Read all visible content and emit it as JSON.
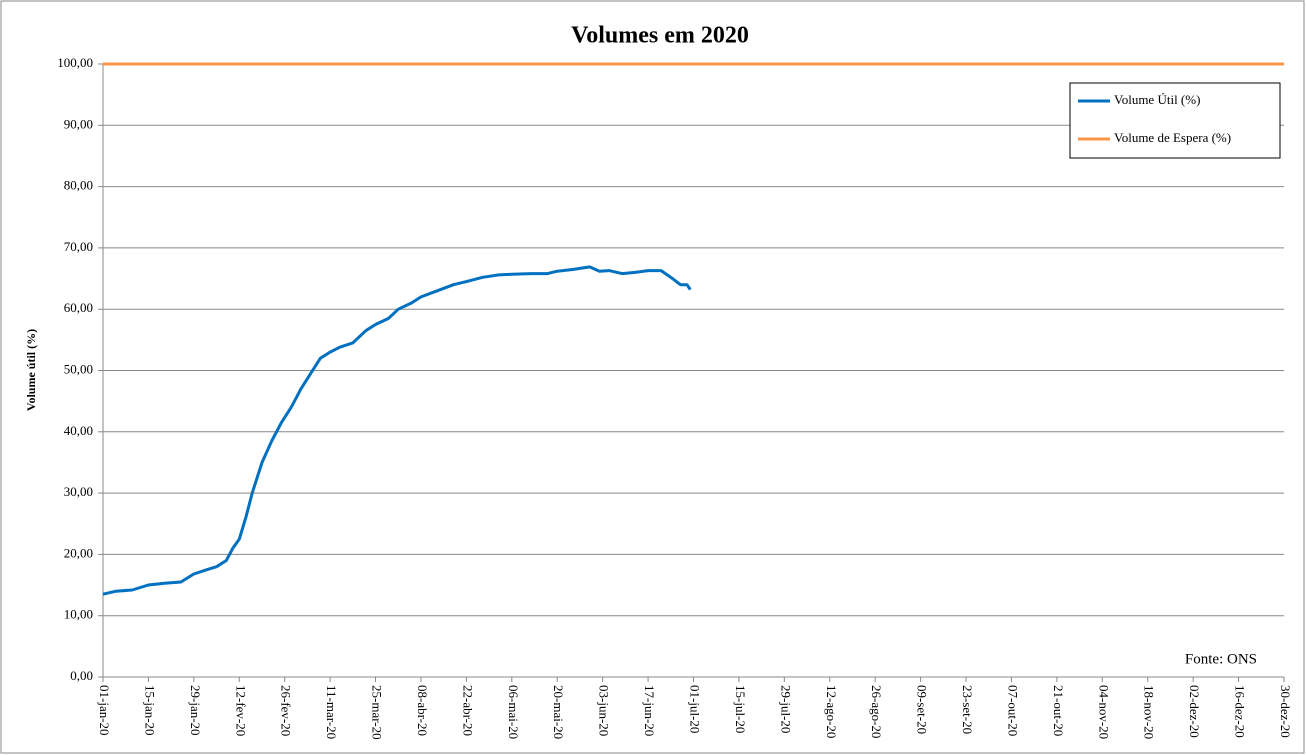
{
  "chart_data": {
    "type": "line",
    "title": "Volumes em 2020",
    "ylabel": "Volume útil (%)",
    "annotation": "Fonte: ONS",
    "legend": "top-right",
    "grid": true,
    "ylim": [
      0,
      100
    ],
    "yticks": [
      {
        "value": 0,
        "label": "0,00"
      },
      {
        "value": 10,
        "label": "10,00"
      },
      {
        "value": 20,
        "label": "20,00"
      },
      {
        "value": 30,
        "label": "30,00"
      },
      {
        "value": 40,
        "label": "40,00"
      },
      {
        "value": 50,
        "label": "50,00"
      },
      {
        "value": 60,
        "label": "60,00"
      },
      {
        "value": 70,
        "label": "70,00"
      },
      {
        "value": 80,
        "label": "80,00"
      },
      {
        "value": 90,
        "label": "90,00"
      },
      {
        "value": 100,
        "label": "100,00"
      }
    ],
    "xlim": [
      "2020-01-01",
      "2020-12-30"
    ],
    "xticks": [
      {
        "value": "2020-01-01",
        "label": "01-jan-20"
      },
      {
        "value": "2020-01-15",
        "label": "15-jan-20"
      },
      {
        "value": "2020-01-29",
        "label": "29-jan-20"
      },
      {
        "value": "2020-02-12",
        "label": "12-fev-20"
      },
      {
        "value": "2020-02-26",
        "label": "26-fev-20"
      },
      {
        "value": "2020-03-11",
        "label": "11-mar-20"
      },
      {
        "value": "2020-03-25",
        "label": "25-mar-20"
      },
      {
        "value": "2020-04-08",
        "label": "08-abr-20"
      },
      {
        "value": "2020-04-22",
        "label": "22-abr-20"
      },
      {
        "value": "2020-05-06",
        "label": "06-mai-20"
      },
      {
        "value": "2020-05-20",
        "label": "20-mai-20"
      },
      {
        "value": "2020-06-03",
        "label": "03-jun-20"
      },
      {
        "value": "2020-06-17",
        "label": "17-jun-20"
      },
      {
        "value": "2020-07-01",
        "label": "01-jul-20"
      },
      {
        "value": "2020-07-15",
        "label": "15-jul-20"
      },
      {
        "value": "2020-07-29",
        "label": "29-jul-20"
      },
      {
        "value": "2020-08-12",
        "label": "12-ago-20"
      },
      {
        "value": "2020-08-26",
        "label": "26-ago-20"
      },
      {
        "value": "2020-09-09",
        "label": "09-set-20"
      },
      {
        "value": "2020-09-23",
        "label": "23-set-20"
      },
      {
        "value": "2020-10-07",
        "label": "07-out-20"
      },
      {
        "value": "2020-10-21",
        "label": "21-out-20"
      },
      {
        "value": "2020-11-04",
        "label": "04-nov-20"
      },
      {
        "value": "2020-11-18",
        "label": "18-nov-20"
      },
      {
        "value": "2020-12-02",
        "label": "02-dez-20"
      },
      {
        "value": "2020-12-16",
        "label": "16-dez-20"
      },
      {
        "value": "2020-12-30",
        "label": "30-dez-20"
      }
    ],
    "series": [
      {
        "name": "Volume Útil (%)",
        "color": "#0070c0",
        "x": [
          "2020-01-01",
          "2020-01-05",
          "2020-01-10",
          "2020-01-15",
          "2020-01-20",
          "2020-01-25",
          "2020-01-29",
          "2020-02-02",
          "2020-02-05",
          "2020-02-08",
          "2020-02-10",
          "2020-02-12",
          "2020-02-14",
          "2020-02-16",
          "2020-02-19",
          "2020-02-22",
          "2020-02-25",
          "2020-02-28",
          "2020-03-02",
          "2020-03-05",
          "2020-03-08",
          "2020-03-11",
          "2020-03-14",
          "2020-03-18",
          "2020-03-22",
          "2020-03-25",
          "2020-03-29",
          "2020-04-01",
          "2020-04-05",
          "2020-04-08",
          "2020-04-13",
          "2020-04-18",
          "2020-04-22",
          "2020-04-27",
          "2020-05-02",
          "2020-05-06",
          "2020-05-12",
          "2020-05-17",
          "2020-05-20",
          "2020-05-25",
          "2020-05-30",
          "2020-06-02",
          "2020-06-05",
          "2020-06-09",
          "2020-06-13",
          "2020-06-17",
          "2020-06-21",
          "2020-06-24",
          "2020-06-27",
          "2020-06-29",
          "2020-06-30"
        ],
        "values": [
          13.5,
          14.0,
          14.2,
          15.0,
          15.3,
          15.5,
          16.8,
          17.5,
          18.0,
          19.0,
          21.0,
          22.5,
          26.0,
          30.0,
          35.0,
          38.5,
          41.5,
          44.0,
          47.0,
          49.5,
          52.0,
          53.0,
          53.8,
          54.5,
          56.5,
          57.5,
          58.5,
          60.0,
          61.0,
          62.0,
          63.0,
          64.0,
          64.5,
          65.2,
          65.6,
          65.7,
          65.8,
          65.8,
          66.2,
          66.5,
          66.9,
          66.2,
          66.3,
          65.8,
          66.0,
          66.3,
          66.3,
          65.2,
          64.0,
          64.0,
          63.2
        ]
      },
      {
        "name": "Volume de Espera (%)",
        "color": "#f79646",
        "x": [
          "2020-01-01",
          "2020-12-30"
        ],
        "values": [
          100,
          100
        ]
      }
    ]
  }
}
